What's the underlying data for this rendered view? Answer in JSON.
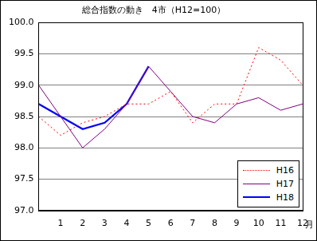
{
  "chart_data": {
    "type": "line",
    "title": "総合指数の動き　4市（H12=100）",
    "x_label": "月",
    "categories": [
      null,
      "1",
      "2",
      "3",
      "4",
      "5",
      "6",
      "7",
      "8",
      "9",
      "10",
      "11",
      "12"
    ],
    "series": [
      {
        "name": "H16",
        "color": "#ff0000",
        "line_style": "dotted",
        "values": [
          98.5,
          98.2,
          98.4,
          98.5,
          98.7,
          98.7,
          98.9,
          98.4,
          98.7,
          98.7,
          99.6,
          99.4,
          99.0
        ]
      },
      {
        "name": "H17",
        "color": "#800080",
        "line_style": "solid",
        "values": [
          99.0,
          98.5,
          98.0,
          98.3,
          98.7,
          99.3,
          98.9,
          98.5,
          98.4,
          98.7,
          98.8,
          98.6,
          98.7
        ]
      },
      {
        "name": "H18",
        "color": "#0000ff",
        "line_style": "solid",
        "values": [
          98.7,
          98.5,
          98.3,
          98.4,
          98.7,
          99.3,
          null,
          null,
          null,
          null,
          null,
          null,
          null
        ]
      }
    ],
    "ylim": [
      97,
      100
    ],
    "yticks": [
      {
        "value": 97,
        "label": "97.0"
      },
      97.5,
      {
        "value": 98,
        "label": "98.0"
      },
      98.5,
      {
        "value": 99,
        "label": "99.0"
      },
      99.5,
      {
        "value": 100,
        "label": "100.0"
      }
    ],
    "grid": true,
    "legend": "lower right"
  }
}
